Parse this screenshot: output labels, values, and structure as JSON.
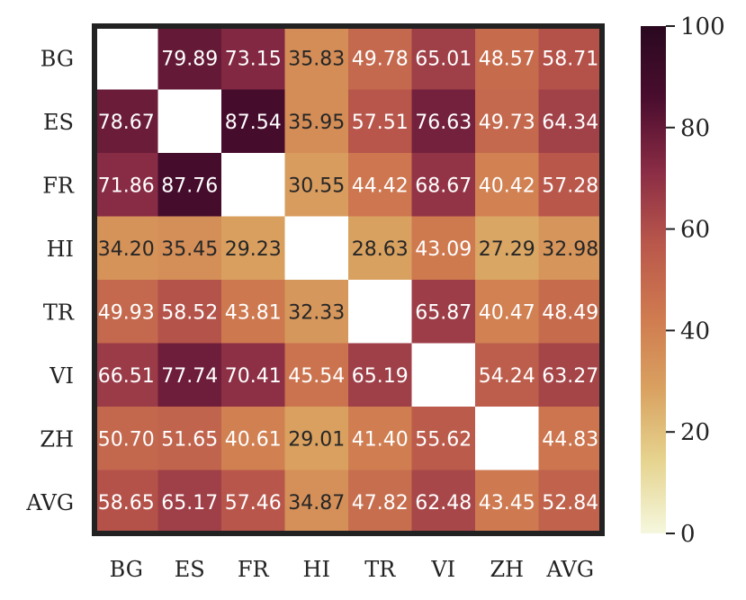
{
  "chart_data": {
    "type": "heatmap",
    "title": "",
    "xlabel": "",
    "ylabel": "",
    "row_labels": [
      "BG",
      "ES",
      "FR",
      "HI",
      "TR",
      "VI",
      "ZH",
      "AVG"
    ],
    "col_labels": [
      "BG",
      "ES",
      "FR",
      "HI",
      "TR",
      "VI",
      "ZH",
      "AVG"
    ],
    "values": [
      [
        null,
        79.89,
        73.15,
        35.83,
        49.78,
        65.01,
        48.57,
        58.71
      ],
      [
        78.67,
        null,
        87.54,
        35.95,
        57.51,
        76.63,
        49.73,
        64.34
      ],
      [
        71.86,
        87.76,
        null,
        30.55,
        44.42,
        68.67,
        40.42,
        57.28
      ],
      [
        34.2,
        35.45,
        29.23,
        null,
        28.63,
        43.09,
        27.29,
        32.98
      ],
      [
        49.93,
        58.52,
        43.81,
        32.33,
        null,
        65.87,
        40.47,
        48.49
      ],
      [
        66.51,
        77.74,
        70.41,
        45.54,
        65.19,
        null,
        54.24,
        63.27
      ],
      [
        50.7,
        51.65,
        40.61,
        29.01,
        41.4,
        55.62,
        null,
        44.83
      ],
      [
        58.65,
        65.17,
        57.46,
        34.87,
        47.82,
        62.48,
        43.45,
        52.84
      ]
    ],
    "value_format": "2 decimals",
    "colorbar": {
      "range": [
        0,
        100
      ],
      "ticks": [
        0,
        20,
        40,
        60,
        80,
        100
      ],
      "colormap": "light yellow to dark red/purple",
      "stops": [
        "#f5f7de",
        "#e6d48f",
        "#d9a160",
        "#cf7a4f",
        "#b9574b",
        "#8a2c45",
        "#4a0d2e",
        "#2a0820"
      ]
    },
    "frame_color": "#222222",
    "diagonal_color": "#ffffff",
    "grid": false,
    "legend": "colorbar right"
  }
}
